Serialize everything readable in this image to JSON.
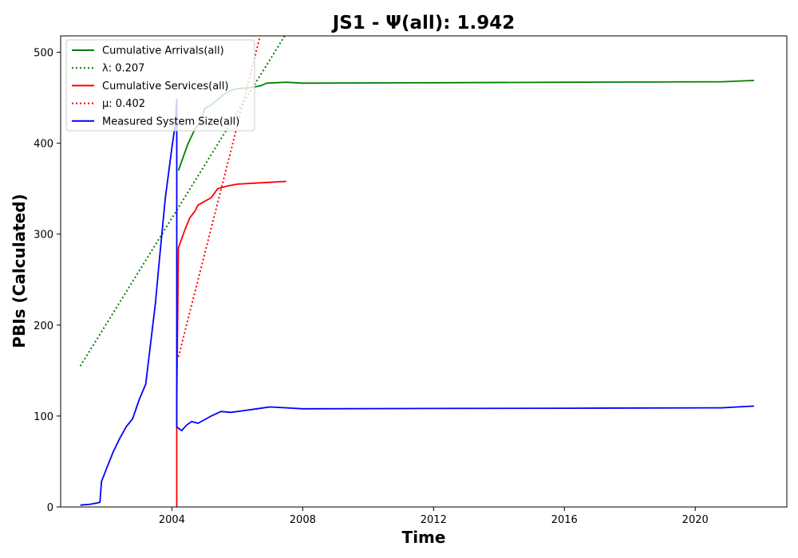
{
  "chart_data": {
    "type": "line",
    "title": "JS1 -  Ψ(all): 1.942",
    "xlabel": "Time",
    "ylabel": "PBIs (Calculated)",
    "xlim": [
      2000.6,
      2022.8
    ],
    "ylim": [
      0,
      518
    ],
    "x_ticks": [
      2004,
      2008,
      2012,
      2016,
      2020
    ],
    "y_ticks": [
      0,
      100,
      200,
      300,
      400,
      500
    ],
    "grid": false,
    "legend_position": "top-left",
    "series": [
      {
        "name": "Cumulative Arrivals(all)",
        "color": "#008000",
        "style": "solid",
        "points": [
          [
            2004.2,
            370
          ],
          [
            2004.25,
            375
          ],
          [
            2004.35,
            385
          ],
          [
            2004.5,
            400
          ],
          [
            2004.7,
            415
          ],
          [
            2004.9,
            425
          ],
          [
            2005.0,
            438
          ],
          [
            2005.2,
            442
          ],
          [
            2005.4,
            448
          ],
          [
            2005.6,
            454
          ],
          [
            2005.8,
            458
          ],
          [
            2006.0,
            460
          ],
          [
            2006.4,
            461
          ],
          [
            2006.7,
            463
          ],
          [
            2006.9,
            466
          ],
          [
            2007.5,
            467
          ],
          [
            2008.0,
            466
          ],
          [
            2012.0,
            466.5
          ],
          [
            2016.0,
            467
          ],
          [
            2020.8,
            467.5
          ],
          [
            2021.8,
            469
          ]
        ]
      },
      {
        "name": "λ: 0.207",
        "color": "#008000",
        "style": "dotted",
        "points": [
          [
            2001.2,
            155
          ],
          [
            2007.45,
            518
          ]
        ]
      },
      {
        "name": "Cumulative Services(all)",
        "color": "#ff0000",
        "style": "solid",
        "points": [
          [
            2004.15,
            0
          ],
          [
            2004.15,
            115
          ],
          [
            2004.2,
            285
          ],
          [
            2004.3,
            295
          ],
          [
            2004.4,
            305
          ],
          [
            2004.55,
            318
          ],
          [
            2004.7,
            325
          ],
          [
            2004.8,
            332
          ],
          [
            2005.0,
            336
          ],
          [
            2005.2,
            340
          ],
          [
            2005.4,
            350
          ],
          [
            2005.7,
            353
          ],
          [
            2006.0,
            355
          ],
          [
            2006.5,
            356
          ],
          [
            2007.0,
            357
          ],
          [
            2007.5,
            358
          ]
        ]
      },
      {
        "name": "μ: 0.402",
        "color": "#ff0000",
        "style": "dotted",
        "points": [
          [
            2004.2,
            165
          ],
          [
            2006.7,
            518
          ]
        ]
      },
      {
        "name": "Measured System Size(all)",
        "color": "#0000ff",
        "style": "solid",
        "points": [
          [
            2001.2,
            2
          ],
          [
            2001.5,
            3
          ],
          [
            2001.8,
            5
          ],
          [
            2001.85,
            28
          ],
          [
            2002.0,
            42
          ],
          [
            2002.2,
            60
          ],
          [
            2002.4,
            75
          ],
          [
            2002.6,
            88
          ],
          [
            2002.8,
            97
          ],
          [
            2003.0,
            118
          ],
          [
            2003.2,
            135
          ],
          [
            2003.4,
            195
          ],
          [
            2003.5,
            225
          ],
          [
            2003.6,
            265
          ],
          [
            2003.8,
            340
          ],
          [
            2004.0,
            395
          ],
          [
            2004.1,
            420
          ],
          [
            2004.15,
            448
          ],
          [
            2004.15,
            88
          ],
          [
            2004.3,
            84
          ],
          [
            2004.45,
            90
          ],
          [
            2004.6,
            94
          ],
          [
            2004.8,
            92
          ],
          [
            2005.0,
            96
          ],
          [
            2005.2,
            100
          ],
          [
            2005.5,
            105
          ],
          [
            2005.8,
            104
          ],
          [
            2006.2,
            106
          ],
          [
            2006.6,
            108
          ],
          [
            2007.0,
            110
          ],
          [
            2007.5,
            109
          ],
          [
            2008.0,
            108
          ],
          [
            2012.0,
            108.3
          ],
          [
            2016.0,
            108.6
          ],
          [
            2020.8,
            109
          ],
          [
            2021.8,
            111
          ]
        ]
      }
    ]
  }
}
